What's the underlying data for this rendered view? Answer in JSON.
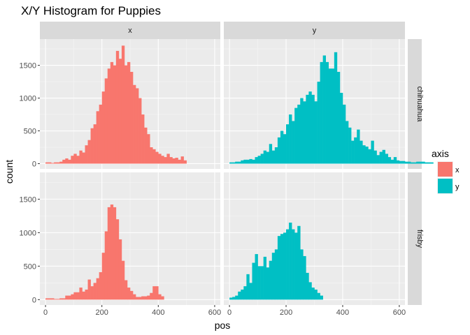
{
  "chart_data": {
    "type": "bar",
    "title": "X/Y Histogram for Puppies",
    "xlabel": "pos",
    "ylabel": "count",
    "xlim": [
      -20,
      620
    ],
    "ylim": [
      -80,
      1900
    ],
    "x_ticks": [
      0,
      200,
      400,
      600
    ],
    "y_ticks": [
      0,
      500,
      1000,
      1500
    ],
    "bin_width": 10,
    "grid": true,
    "facet_cols": [
      "x",
      "y"
    ],
    "facet_rows": [
      "chihuahua",
      "frisby"
    ],
    "legend": {
      "title": "axis",
      "position": "right",
      "entries": [
        {
          "label": "x",
          "color": "#F8766D"
        },
        {
          "label": "y",
          "color": "#00BFC4"
        }
      ]
    },
    "panels": [
      {
        "row": "chihuahua",
        "col": "x",
        "color": "#F8766D",
        "bin_start": 0,
        "values": [
          20,
          20,
          10,
          20,
          20,
          30,
          60,
          80,
          60,
          120,
          150,
          120,
          200,
          170,
          280,
          360,
          540,
          600,
          800,
          900,
          1100,
          1300,
          1450,
          1550,
          1500,
          1720,
          1600,
          1800,
          1500,
          1550,
          1400,
          1200,
          1150,
          1000,
          750,
          550,
          450,
          250,
          220,
          180,
          150,
          120,
          100,
          150,
          100,
          80,
          90,
          60,
          110,
          50
        ]
      },
      {
        "row": "chihuahua",
        "col": "y",
        "color": "#00BFC4",
        "bin_start": 0,
        "values": [
          20,
          20,
          30,
          30,
          50,
          60,
          60,
          70,
          60,
          100,
          120,
          150,
          200,
          180,
          300,
          200,
          250,
          400,
          500,
          450,
          600,
          750,
          650,
          850,
          900,
          1000,
          950,
          1050,
          1100,
          1050,
          950,
          1250,
          1550,
          1650,
          1550,
          1450,
          1450,
          1700,
          1400,
          1080,
          900,
          650,
          550,
          350,
          400,
          520,
          350,
          280,
          260,
          220,
          350,
          200,
          130,
          180,
          210,
          150,
          100,
          60,
          100,
          50,
          40,
          40,
          30,
          30,
          20,
          20,
          30,
          30,
          30,
          20,
          20,
          20
        ]
      },
      {
        "row": "frisby",
        "col": "x",
        "color": "#F8766D",
        "bin_start": 0,
        "values": [
          20,
          20,
          20,
          10,
          10,
          20,
          20,
          60,
          60,
          80,
          110,
          110,
          180,
          120,
          150,
          300,
          200,
          250,
          320,
          410,
          700,
          1020,
          1380,
          1420,
          1380,
          1200,
          900,
          580,
          290,
          180,
          130,
          80,
          40,
          40,
          50,
          50,
          60,
          100,
          200,
          200,
          80,
          50
        ]
      },
      {
        "row": "frisby",
        "col": "y",
        "color": "#00BFC4",
        "bin_start": 0,
        "values": [
          30,
          40,
          60,
          120,
          150,
          200,
          380,
          250,
          550,
          680,
          500,
          500,
          640,
          480,
          580,
          700,
          750,
          950,
          980,
          1000,
          1050,
          1150,
          1050,
          1000,
          1100,
          750,
          650,
          400,
          260,
          180,
          150,
          100,
          60
        ]
      }
    ]
  }
}
